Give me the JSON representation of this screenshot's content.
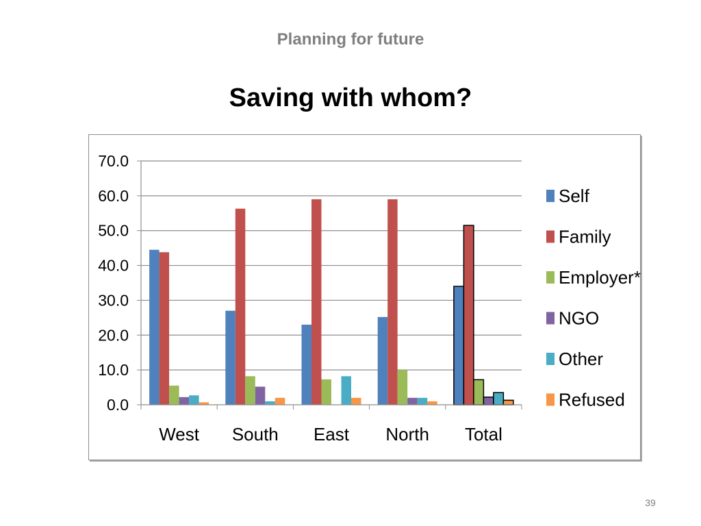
{
  "slide": {
    "subtitle": "Planning for future",
    "title": "Saving with whom?",
    "page_number": "39"
  },
  "chart_data": {
    "type": "bar",
    "categories": [
      "West",
      "South",
      "East",
      "North",
      "Total"
    ],
    "series": [
      {
        "name": "Self",
        "color": "#4f81bd",
        "values": [
          44.5,
          27.0,
          23.0,
          25.2,
          34.0
        ]
      },
      {
        "name": "Family",
        "color": "#c0504d",
        "values": [
          43.8,
          56.3,
          59.0,
          59.0,
          51.5
        ]
      },
      {
        "name": "Employer*",
        "color": "#9bbb59",
        "values": [
          5.5,
          8.2,
          7.3,
          10.0,
          7.2
        ]
      },
      {
        "name": "NGO",
        "color": "#8064a2",
        "values": [
          2.2,
          5.2,
          0.0,
          2.0,
          2.2
        ]
      },
      {
        "name": "Other",
        "color": "#4bacc6",
        "values": [
          2.7,
          1.0,
          8.2,
          2.0,
          3.5
        ]
      },
      {
        "name": "Refused",
        "color": "#f79646",
        "values": [
          0.7,
          2.0,
          2.0,
          1.0,
          1.3
        ]
      }
    ],
    "yticks": [
      "0.0",
      "10.0",
      "20.0",
      "30.0",
      "40.0",
      "50.0",
      "60.0",
      "70.0"
    ],
    "ylim": [
      0,
      70
    ],
    "grid": true,
    "legend_position": "right",
    "highlighted_category": "Total"
  }
}
